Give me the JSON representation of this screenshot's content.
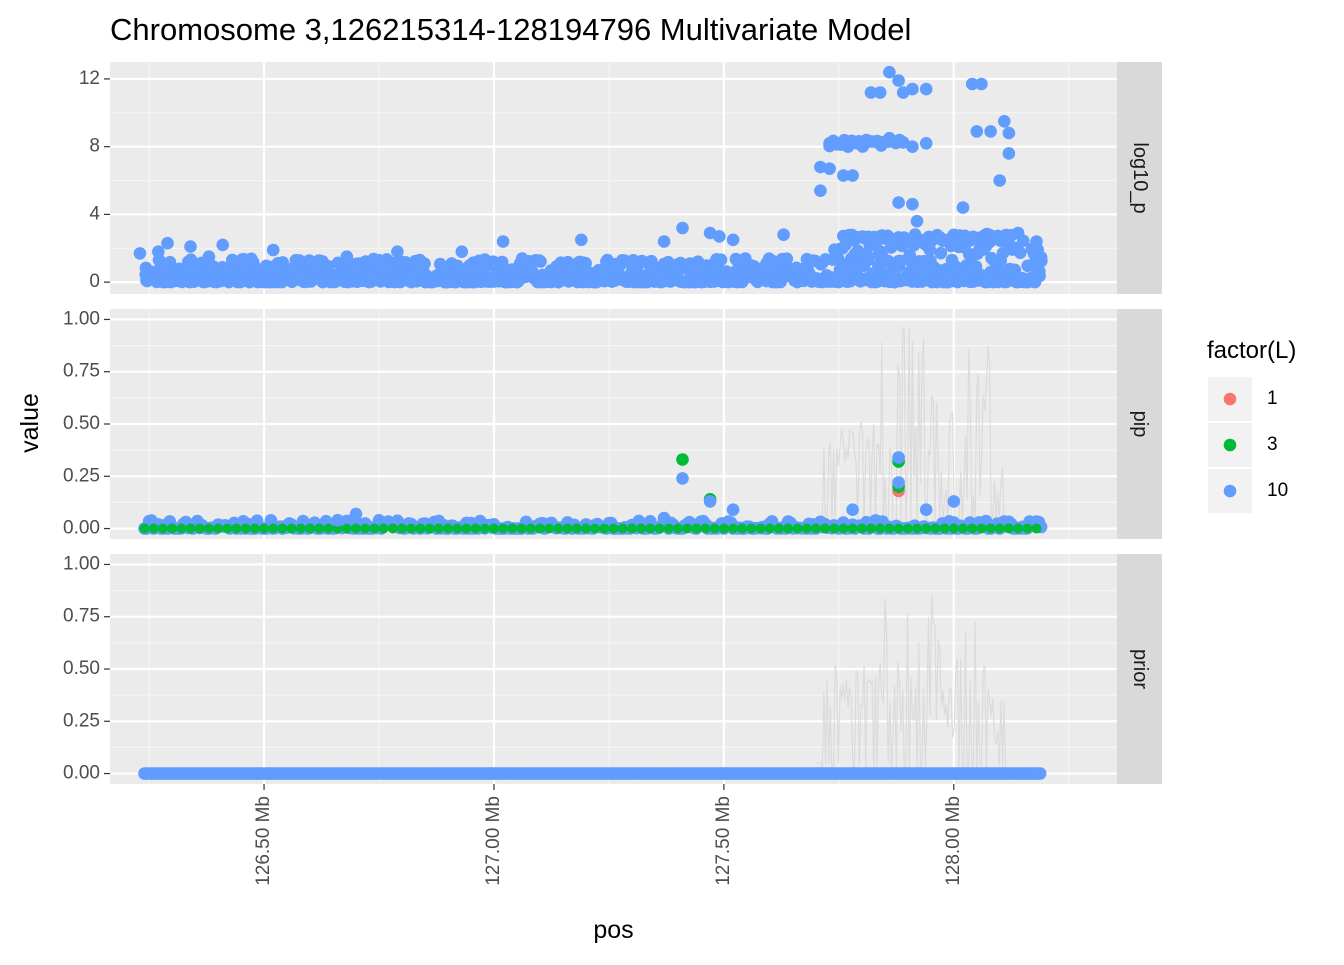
{
  "chart_data": {
    "type": "scatter",
    "title": "Chromosome 3,126215314-128194796 Multivariate Model",
    "xlabel": "pos",
    "ylabel": "value",
    "x_range_mb": [
      126.215314,
      128.194796
    ],
    "x_ticks": [
      {
        "value": 126.5,
        "label": "126.50 Mb"
      },
      {
        "value": 127.0,
        "label": "127.00 Mb"
      },
      {
        "value": 127.5,
        "label": "127.50 Mb"
      },
      {
        "value": 128.0,
        "label": "128.00 Mb"
      }
    ],
    "legend": {
      "title": "factor(L)",
      "placement": "right",
      "entries": [
        {
          "label": "1",
          "color": "#F8766D"
        },
        {
          "label": "3",
          "color": "#00BA38"
        },
        {
          "label": "10",
          "color": "#619CFF"
        }
      ]
    },
    "background_line_color": "#D9D9D9",
    "panel_background": "#EBEBEB",
    "strip_background": "#D9D9D9",
    "grid": true,
    "facets": [
      {
        "strip_label": "log10_p",
        "ylim": [
          -0.7,
          13.0
        ],
        "y_ticks": [
          {
            "value": 0,
            "label": "0"
          },
          {
            "value": 4,
            "label": "4"
          },
          {
            "value": 8,
            "label": "8"
          },
          {
            "value": 12,
            "label": "12"
          }
        ],
        "points": [
          {
            "x": 126.23,
            "y": 1.7,
            "L": "10"
          },
          {
            "x": 126.27,
            "y": 1.8,
            "L": "10"
          },
          {
            "x": 126.29,
            "y": 2.3,
            "L": "10"
          },
          {
            "x": 126.34,
            "y": 2.1,
            "L": "10"
          },
          {
            "x": 126.38,
            "y": 1.5,
            "L": "10"
          },
          {
            "x": 126.41,
            "y": 2.2,
            "L": "10"
          },
          {
            "x": 126.52,
            "y": 1.9,
            "L": "10"
          },
          {
            "x": 126.68,
            "y": 1.5,
            "L": "10"
          },
          {
            "x": 126.79,
            "y": 1.8,
            "L": "10"
          },
          {
            "x": 126.93,
            "y": 1.8,
            "L": "10"
          },
          {
            "x": 127.02,
            "y": 2.4,
            "L": "10"
          },
          {
            "x": 127.19,
            "y": 2.5,
            "L": "10"
          },
          {
            "x": 127.37,
            "y": 2.4,
            "L": "10"
          },
          {
            "x": 127.41,
            "y": 3.2,
            "L": "10"
          },
          {
            "x": 127.47,
            "y": 2.9,
            "L": "10"
          },
          {
            "x": 127.49,
            "y": 2.7,
            "L": "10"
          },
          {
            "x": 127.52,
            "y": 2.5,
            "L": "10"
          },
          {
            "x": 127.63,
            "y": 2.8,
            "L": "10"
          },
          {
            "x": 127.71,
            "y": 5.4,
            "L": "10"
          },
          {
            "x": 127.71,
            "y": 6.8,
            "L": "10"
          },
          {
            "x": 127.73,
            "y": 6.7,
            "L": "10"
          },
          {
            "x": 127.73,
            "y": 8.2,
            "L": "10"
          },
          {
            "x": 127.76,
            "y": 6.3,
            "L": "10"
          },
          {
            "x": 127.78,
            "y": 6.3,
            "L": "10"
          },
          {
            "x": 127.77,
            "y": 8.0,
            "L": "10"
          },
          {
            "x": 127.79,
            "y": 8.2,
            "L": "10"
          },
          {
            "x": 127.82,
            "y": 11.2,
            "L": "10"
          },
          {
            "x": 127.84,
            "y": 11.2,
            "L": "10"
          },
          {
            "x": 127.86,
            "y": 12.4,
            "L": "10"
          },
          {
            "x": 127.88,
            "y": 11.9,
            "L": "10"
          },
          {
            "x": 127.89,
            "y": 11.2,
            "L": "10"
          },
          {
            "x": 127.91,
            "y": 11.4,
            "L": "10"
          },
          {
            "x": 127.94,
            "y": 11.4,
            "L": "10"
          },
          {
            "x": 127.86,
            "y": 8.5,
            "L": "10"
          },
          {
            "x": 127.91,
            "y": 8.0,
            "L": "10"
          },
          {
            "x": 127.94,
            "y": 8.2,
            "L": "10"
          },
          {
            "x": 127.88,
            "y": 4.7,
            "L": "10"
          },
          {
            "x": 127.91,
            "y": 4.6,
            "L": "10"
          },
          {
            "x": 127.92,
            "y": 3.6,
            "L": "10"
          },
          {
            "x": 128.02,
            "y": 4.4,
            "L": "10"
          },
          {
            "x": 128.04,
            "y": 11.7,
            "L": "10"
          },
          {
            "x": 128.06,
            "y": 11.7,
            "L": "10"
          },
          {
            "x": 128.05,
            "y": 8.9,
            "L": "10"
          },
          {
            "x": 128.08,
            "y": 8.9,
            "L": "10"
          },
          {
            "x": 128.11,
            "y": 9.5,
            "L": "10"
          },
          {
            "x": 128.12,
            "y": 8.8,
            "L": "10"
          },
          {
            "x": 128.12,
            "y": 7.6,
            "L": "10"
          },
          {
            "x": 128.1,
            "y": 6.0,
            "L": "10"
          },
          {
            "x": 128.14,
            "y": 2.9,
            "L": "10"
          },
          {
            "x": 128.18,
            "y": 2.4,
            "L": "10"
          }
        ]
      },
      {
        "strip_label": "pip",
        "ylim": [
          -0.05,
          1.05
        ],
        "y_ticks": [
          {
            "value": 0,
            "label": "0.00"
          },
          {
            "value": 0.25,
            "label": "0.25"
          },
          {
            "value": 0.5,
            "label": "0.50"
          },
          {
            "value": 0.75,
            "label": "0.75"
          },
          {
            "value": 1.0,
            "label": "1.00"
          }
        ],
        "points": [
          {
            "x": 127.41,
            "y": 0.33,
            "L": "3"
          },
          {
            "x": 127.41,
            "y": 0.24,
            "L": "10"
          },
          {
            "x": 127.47,
            "y": 0.14,
            "L": "3"
          },
          {
            "x": 127.47,
            "y": 0.13,
            "L": "10"
          },
          {
            "x": 127.88,
            "y": 0.18,
            "L": "1"
          },
          {
            "x": 127.88,
            "y": 0.32,
            "L": "3"
          },
          {
            "x": 127.88,
            "y": 0.2,
            "L": "3"
          },
          {
            "x": 127.88,
            "y": 0.34,
            "L": "10"
          },
          {
            "x": 127.88,
            "y": 0.22,
            "L": "10"
          },
          {
            "x": 127.94,
            "y": 0.09,
            "L": "10"
          },
          {
            "x": 128.0,
            "y": 0.13,
            "L": "10"
          },
          {
            "x": 127.78,
            "y": 0.09,
            "L": "10"
          },
          {
            "x": 126.7,
            "y": 0.07,
            "L": "10"
          },
          {
            "x": 126.66,
            "y": 0.04,
            "L": "10"
          },
          {
            "x": 127.52,
            "y": 0.09,
            "L": "10"
          },
          {
            "x": 127.37,
            "y": 0.05,
            "L": "10"
          }
        ]
      },
      {
        "strip_label": "prior",
        "ylim": [
          -0.05,
          1.05
        ],
        "y_ticks": [
          {
            "value": 0,
            "label": "0.00"
          },
          {
            "value": 0.25,
            "label": "0.25"
          },
          {
            "value": 0.5,
            "label": "0.50"
          },
          {
            "value": 0.75,
            "label": "0.75"
          },
          {
            "value": 1.0,
            "label": "1.00"
          }
        ],
        "points": []
      }
    ]
  }
}
